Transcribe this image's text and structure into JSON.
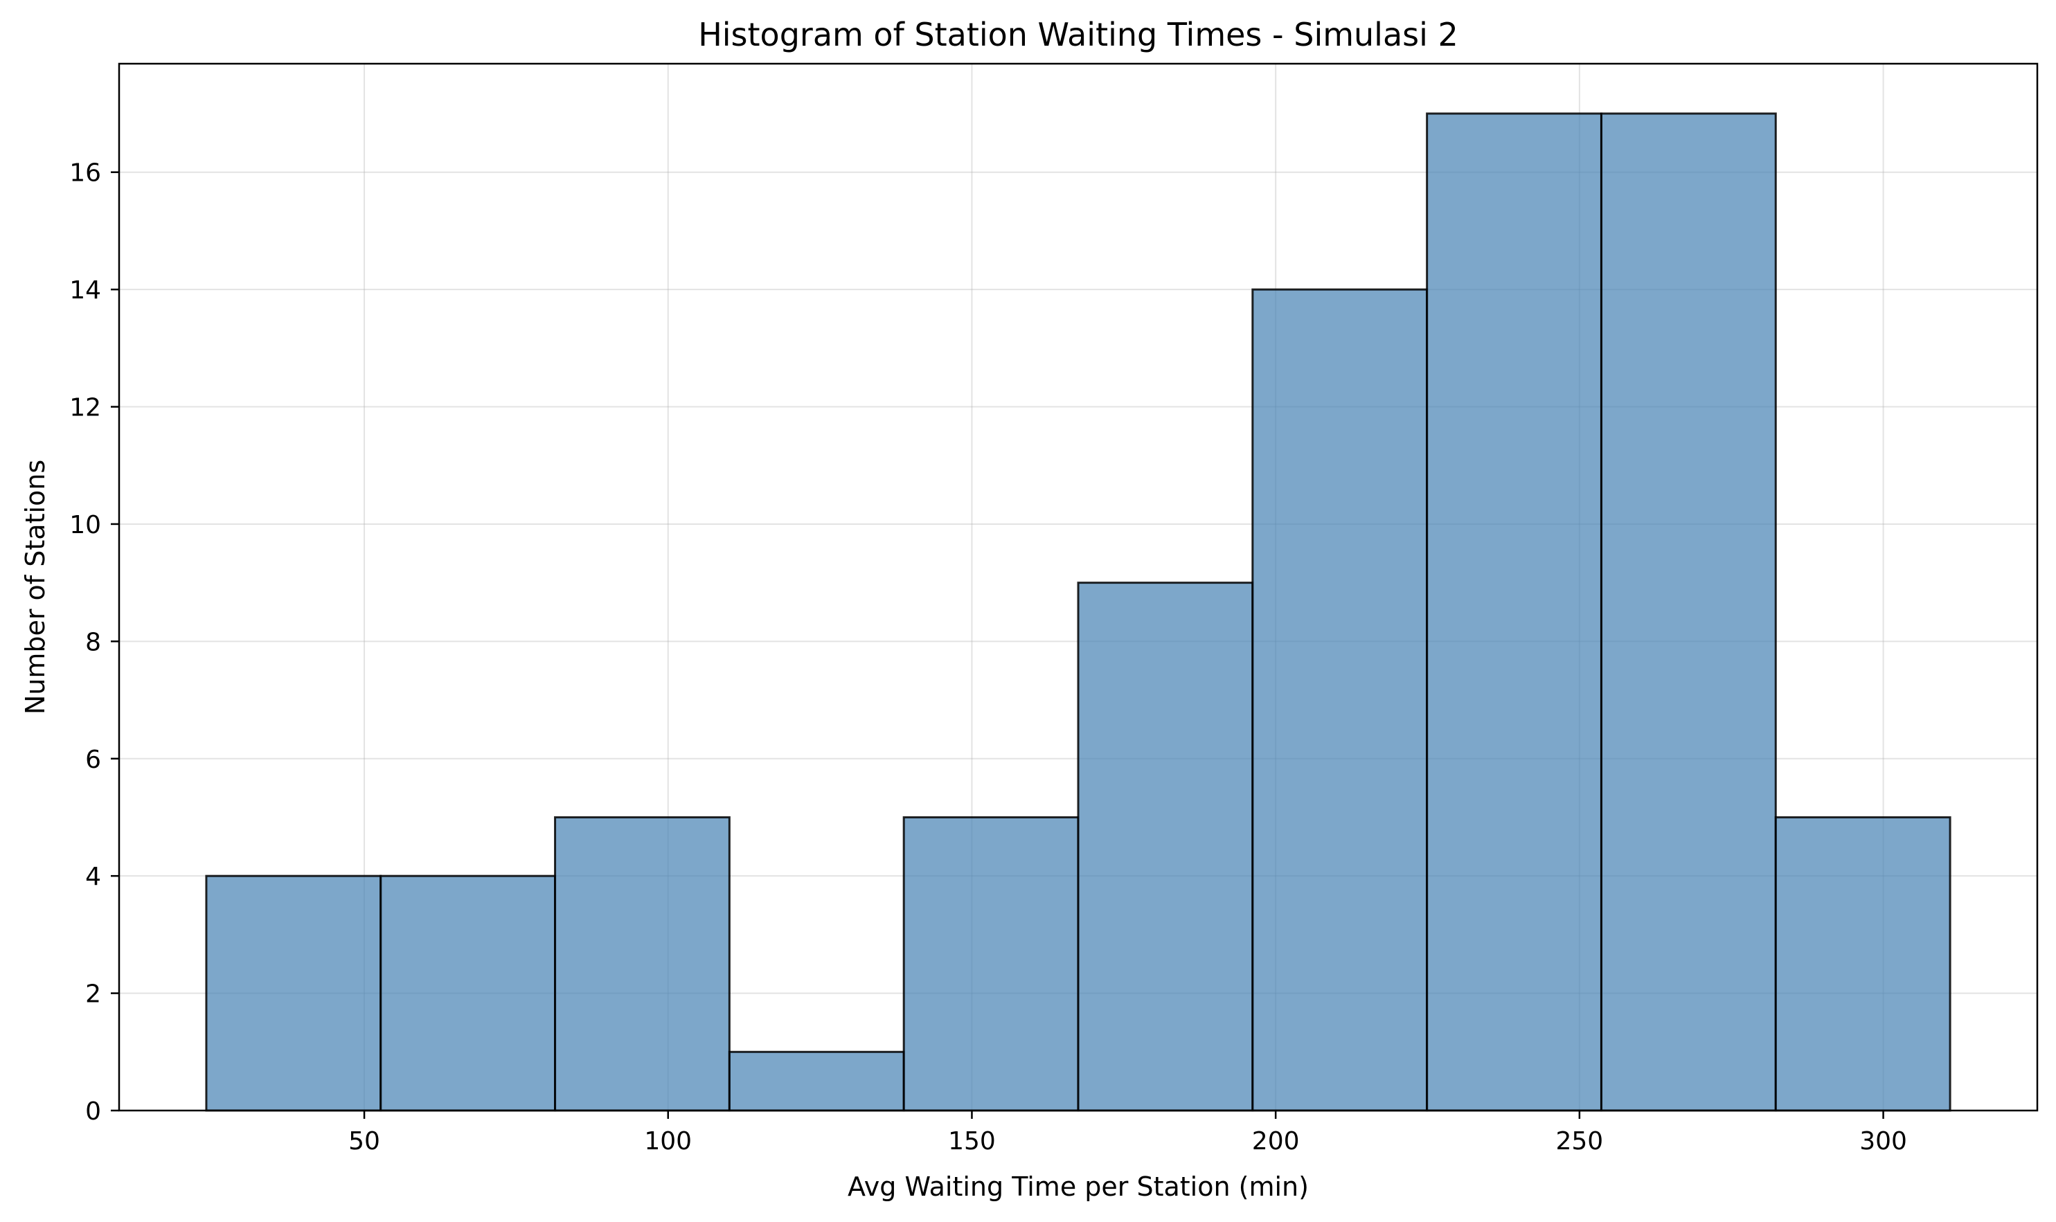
{
  "chart_data": {
    "type": "bar",
    "subtype": "histogram",
    "title": "Histogram of Station Waiting Times - Simulasi 2",
    "xlabel": "Avg Waiting Time per Station (min)",
    "ylabel": "Number of Stations",
    "bins": [
      {
        "start": 24.0,
        "end": 52.7,
        "count": 4
      },
      {
        "start": 52.7,
        "end": 81.4,
        "count": 4
      },
      {
        "start": 81.4,
        "end": 110.1,
        "count": 5
      },
      {
        "start": 110.1,
        "end": 138.8,
        "count": 1
      },
      {
        "start": 138.8,
        "end": 167.5,
        "count": 5
      },
      {
        "start": 167.5,
        "end": 196.2,
        "count": 9
      },
      {
        "start": 196.2,
        "end": 224.9,
        "count": 14
      },
      {
        "start": 224.9,
        "end": 253.6,
        "count": 17
      },
      {
        "start": 253.6,
        "end": 282.3,
        "count": 17
      },
      {
        "start": 282.3,
        "end": 311.0,
        "count": 5
      }
    ],
    "xlim": [
      9.65,
      325.35
    ],
    "ylim": [
      0,
      17.85
    ],
    "xticks": [
      50,
      100,
      150,
      200,
      250,
      300
    ],
    "yticks": [
      0,
      2,
      4,
      6,
      8,
      10,
      12,
      14,
      16
    ],
    "grid": true,
    "colors": {
      "bar_fill": "#4682b4",
      "bar_edge": "#000000",
      "grid": "#b0b0b0"
    }
  }
}
